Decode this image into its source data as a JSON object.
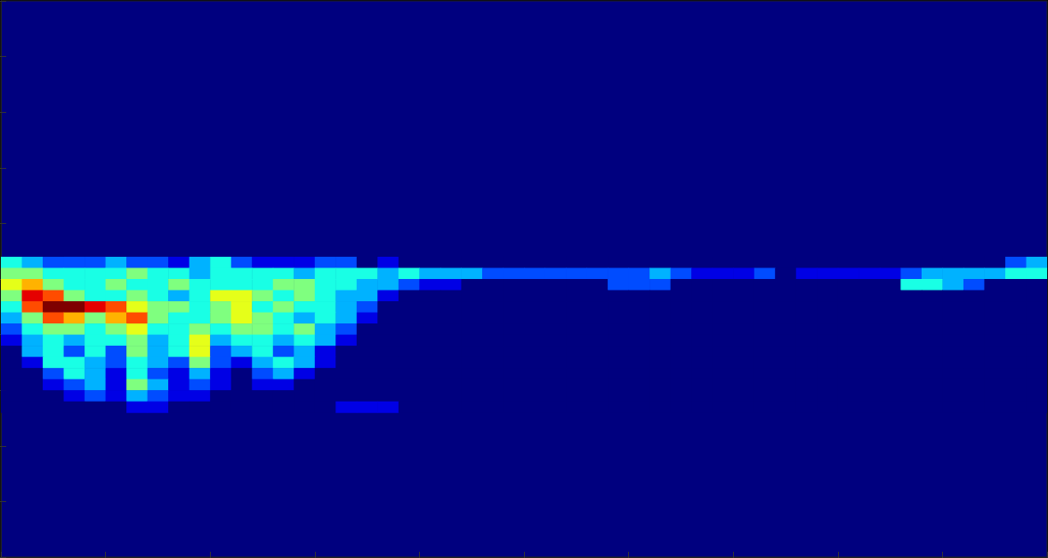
{
  "chart_data": {
    "type": "heatmap",
    "x": [
      1,
      3,
      5,
      7,
      9,
      11,
      13,
      15,
      17,
      19,
      21,
      23,
      25,
      27,
      29,
      31,
      33,
      35,
      37,
      39,
      41,
      43,
      45,
      47,
      49,
      51,
      53,
      55,
      57,
      59,
      61,
      63,
      65,
      67,
      69,
      71,
      73,
      75,
      77,
      79,
      81,
      83,
      85,
      87,
      89,
      91,
      93,
      95,
      97,
      99
    ],
    "y": [
      53,
      51,
      49,
      47,
      45,
      43,
      41,
      39,
      37,
      35,
      33,
      31,
      29,
      27
    ],
    "cells": [
      [
        4,
        3,
        2,
        2,
        2,
        3,
        2,
        2,
        1,
        3,
        4,
        2,
        1,
        1,
        1,
        2,
        2,
        0,
        1,
        0,
        0,
        0,
        0,
        0,
        0,
        0,
        0,
        0,
        0,
        0,
        0,
        0,
        0,
        0,
        0,
        0,
        0,
        0,
        0,
        0,
        0,
        0,
        0,
        0,
        0,
        0,
        0,
        0,
        2,
        3
      ],
      [
        5,
        5,
        4,
        4,
        4,
        4,
        5,
        4,
        4,
        3,
        4,
        4,
        4,
        4,
        3,
        4,
        4,
        4,
        3,
        4,
        3,
        3,
        3,
        2,
        2,
        2,
        2,
        2,
        2,
        2,
        2,
        3,
        2,
        1,
        1,
        1,
        2,
        0,
        1,
        1,
        1,
        1,
        1,
        2,
        3,
        3,
        3,
        3,
        4,
        4
      ],
      [
        6,
        7,
        5,
        4,
        4,
        5,
        4,
        4,
        5,
        4,
        4,
        4,
        4,
        5,
        5,
        4,
        4,
        3,
        3,
        2,
        1,
        1,
        0,
        0,
        0,
        0,
        0,
        0,
        0,
        2,
        2,
        2,
        0,
        0,
        0,
        0,
        0,
        0,
        0,
        0,
        0,
        0,
        0,
        4,
        4,
        3,
        2,
        0,
        0,
        0
      ],
      [
        5,
        9,
        8,
        5,
        4,
        4,
        5,
        4,
        3,
        4,
        6,
        6,
        5,
        4,
        5,
        4,
        3,
        3,
        1,
        0,
        0,
        0,
        0,
        0,
        0,
        0,
        0,
        0,
        0,
        0,
        0,
        0,
        0,
        0,
        0,
        0,
        0,
        0,
        0,
        0,
        0,
        0,
        0,
        0,
        0,
        0,
        0,
        0,
        0,
        0
      ],
      [
        4,
        8,
        10,
        10,
        9,
        8,
        6,
        5,
        5,
        4,
        5,
        6,
        4,
        5,
        4,
        4,
        3,
        2,
        0,
        0,
        0,
        0,
        0,
        0,
        0,
        0,
        0,
        0,
        0,
        0,
        0,
        0,
        0,
        0,
        0,
        0,
        0,
        0,
        0,
        0,
        0,
        0,
        0,
        0,
        0,
        0,
        0,
        0,
        0,
        0
      ],
      [
        3,
        5,
        8,
        7,
        5,
        7,
        8,
        5,
        4,
        4,
        5,
        6,
        5,
        4,
        3,
        4,
        3,
        1,
        0,
        0,
        0,
        0,
        0,
        0,
        0,
        0,
        0,
        0,
        0,
        0,
        0,
        0,
        0,
        0,
        0,
        0,
        0,
        0,
        0,
        0,
        0,
        0,
        0,
        0,
        0,
        0,
        0,
        0,
        0,
        0
      ],
      [
        2,
        4,
        5,
        5,
        4,
        5,
        6,
        4,
        4,
        5,
        4,
        5,
        5,
        4,
        5,
        3,
        2,
        0,
        0,
        0,
        0,
        0,
        0,
        0,
        0,
        0,
        0,
        0,
        0,
        0,
        0,
        0,
        0,
        0,
        0,
        0,
        0,
        0,
        0,
        0,
        0,
        0,
        0,
        0,
        0,
        0,
        0,
        0,
        0,
        0
      ],
      [
        1,
        3,
        4,
        3,
        4,
        4,
        5,
        3,
        4,
        6,
        3,
        4,
        4,
        3,
        4,
        3,
        1,
        0,
        0,
        0,
        0,
        0,
        0,
        0,
        0,
        0,
        0,
        0,
        0,
        0,
        0,
        0,
        0,
        0,
        0,
        0,
        0,
        0,
        0,
        0,
        0,
        0,
        0,
        0,
        0,
        0,
        0,
        0,
        0,
        0
      ],
      [
        0,
        3,
        4,
        2,
        4,
        2,
        5,
        3,
        4,
        6,
        2,
        3,
        4,
        2,
        3,
        1,
        0,
        0,
        0,
        0,
        0,
        0,
        0,
        0,
        0,
        0,
        0,
        0,
        0,
        0,
        0,
        0,
        0,
        0,
        0,
        0,
        0,
        0,
        0,
        0,
        0,
        0,
        0,
        0,
        0,
        0,
        0,
        0,
        0,
        0
      ],
      [
        0,
        1,
        4,
        4,
        3,
        2,
        4,
        3,
        2,
        5,
        2,
        1,
        3,
        4,
        3,
        1,
        0,
        0,
        0,
        0,
        0,
        0,
        0,
        0,
        0,
        0,
        0,
        0,
        0,
        0,
        0,
        0,
        0,
        0,
        0,
        0,
        0,
        0,
        0,
        0,
        0,
        0,
        0,
        0,
        0,
        0,
        0,
        0,
        0,
        0
      ],
      [
        0,
        0,
        2,
        4,
        3,
        1,
        4,
        2,
        1,
        3,
        1,
        0,
        2,
        3,
        1,
        0,
        0,
        0,
        0,
        0,
        0,
        0,
        0,
        0,
        0,
        0,
        0,
        0,
        0,
        0,
        0,
        0,
        0,
        0,
        0,
        0,
        0,
        0,
        0,
        0,
        0,
        0,
        0,
        0,
        0,
        0,
        0,
        0,
        0,
        0
      ],
      [
        0,
        0,
        1,
        2,
        3,
        1,
        5,
        3,
        1,
        2,
        1,
        0,
        1,
        1,
        0,
        0,
        0,
        0,
        0,
        0,
        0,
        0,
        0,
        0,
        0,
        0,
        0,
        0,
        0,
        0,
        0,
        0,
        0,
        0,
        0,
        0,
        0,
        0,
        0,
        0,
        0,
        0,
        0,
        0,
        0,
        0,
        0,
        0,
        0,
        0
      ],
      [
        0,
        0,
        0,
        1,
        2,
        1,
        3,
        2,
        1,
        1,
        0,
        0,
        0,
        0,
        0,
        0,
        0,
        0,
        0,
        0,
        0,
        0,
        0,
        0,
        0,
        0,
        0,
        0,
        0,
        0,
        0,
        0,
        0,
        0,
        0,
        0,
        0,
        0,
        0,
        0,
        0,
        0,
        0,
        0,
        0,
        0,
        0,
        0,
        0,
        0
      ],
      [
        0,
        0,
        0,
        0,
        0,
        0,
        1,
        1,
        0,
        0,
        0,
        0,
        0,
        0,
        0,
        0,
        1,
        1,
        1,
        0,
        0,
        0,
        0,
        0,
        0,
        0,
        0,
        0,
        0,
        0,
        0,
        0,
        0,
        0,
        0,
        0,
        0,
        0,
        0,
        0,
        0,
        0,
        0,
        0,
        0,
        0,
        0,
        0,
        0,
        0
      ]
    ],
    "color_range": [
      0,
      10
    ],
    "xlim": [
      0,
      100
    ],
    "ylim": [
      0,
      100
    ],
    "xticks": [
      0,
      10,
      20,
      30,
      40,
      50,
      60,
      70,
      80,
      90,
      100
    ],
    "yticks": [
      0,
      10,
      20,
      30,
      40,
      50,
      60,
      70,
      80,
      90,
      100
    ],
    "tick_labels": false,
    "grid": false
  }
}
